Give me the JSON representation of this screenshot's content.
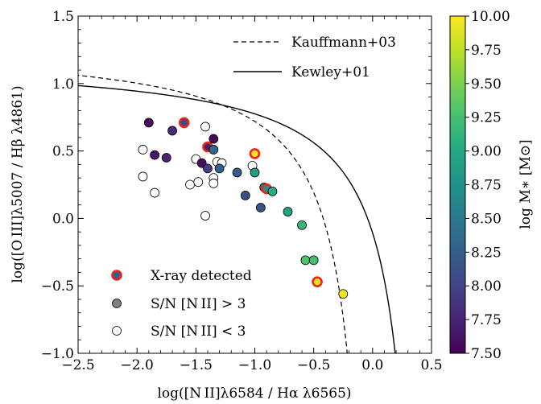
{
  "chart_data": {
    "type": "scatter",
    "xlabel": "log([N II]λ6584 / Hα λ6565)",
    "ylabel": "log([O III]λ5007 / Hβ λ4861)",
    "xlim": [
      -2.5,
      0.5
    ],
    "ylim": [
      -1.0,
      1.5
    ],
    "x_ticks": [
      "−2.5",
      "−2.0",
      "−1.5",
      "−1.0",
      "−0.5",
      "0.0",
      "0.5"
    ],
    "y_ticks": [
      "−1.0",
      "−0.5",
      "0.0",
      "0.5",
      "1.0",
      "1.5"
    ],
    "grid": false,
    "lines": [
      {
        "name": "Kauffmann+03",
        "style": "dashed"
      },
      {
        "name": "Kewley+01",
        "style": "solid"
      }
    ],
    "legend_lines_position": "top-right",
    "legend_points_position": "bottom-left",
    "legend_points": [
      "X-ray detected",
      "S/N [N II] > 3",
      "S/N [N II] < 3"
    ],
    "colorbar": {
      "label": "log M∗ [M⊙]",
      "min": 7.5,
      "max": 10.0,
      "ticks": [
        "7.50",
        "7.75",
        "8.00",
        "8.25",
        "8.50",
        "8.75",
        "9.00",
        "9.25",
        "9.50",
        "9.75",
        "10.00"
      ],
      "colormap": "viridis"
    },
    "points_detected": [
      {
        "x": -1.9,
        "y": 0.71,
        "m": 7.6
      },
      {
        "x": -1.85,
        "y": 0.47,
        "m": 7.65
      },
      {
        "x": -1.75,
        "y": 0.45,
        "m": 7.75
      },
      {
        "x": -1.7,
        "y": 0.65,
        "m": 7.8
      },
      {
        "x": -1.6,
        "y": 0.71,
        "m": 8.05,
        "xray": true
      },
      {
        "x": -1.45,
        "y": 0.41,
        "m": 7.6
      },
      {
        "x": -1.4,
        "y": 0.53,
        "m": 7.7,
        "xray": true
      },
      {
        "x": -1.4,
        "y": 0.37,
        "m": 7.95
      },
      {
        "x": -1.35,
        "y": 0.59,
        "m": 7.55
      },
      {
        "x": -1.35,
        "y": 0.51,
        "m": 8.35
      },
      {
        "x": -1.3,
        "y": 0.37,
        "m": 8.25
      },
      {
        "x": -1.15,
        "y": 0.34,
        "m": 8.2
      },
      {
        "x": -1.08,
        "y": 0.17,
        "m": 8.1
      },
      {
        "x": -1.0,
        "y": 0.48,
        "m": 9.95,
        "xray": true
      },
      {
        "x": -1.0,
        "y": 0.34,
        "m": 8.9
      },
      {
        "x": -0.95,
        "y": 0.08,
        "m": 8.15
      },
      {
        "x": -0.92,
        "y": 0.23,
        "m": 8.4
      },
      {
        "x": -0.9,
        "y": 0.22,
        "m": 8.7,
        "xray": true
      },
      {
        "x": -0.85,
        "y": 0.2,
        "m": 9.05
      },
      {
        "x": -0.72,
        "y": 0.05,
        "m": 8.95
      },
      {
        "x": -0.6,
        "y": -0.05,
        "m": 9.15
      },
      {
        "x": -0.57,
        "y": -0.31,
        "m": 9.3
      },
      {
        "x": -0.5,
        "y": -0.31,
        "m": 9.25
      },
      {
        "x": -0.47,
        "y": -0.47,
        "m": 9.9,
        "xray": true
      },
      {
        "x": -0.25,
        "y": -0.56,
        "m": 9.95
      }
    ],
    "points_undetected": [
      {
        "x": -1.95,
        "y": 0.51
      },
      {
        "x": -1.95,
        "y": 0.31
      },
      {
        "x": -1.85,
        "y": 0.19
      },
      {
        "x": -1.55,
        "y": 0.25
      },
      {
        "x": -1.5,
        "y": 0.44
      },
      {
        "x": -1.48,
        "y": 0.27
      },
      {
        "x": -1.42,
        "y": 0.68
      },
      {
        "x": -1.42,
        "y": 0.02
      },
      {
        "x": -1.35,
        "y": 0.3
      },
      {
        "x": -1.35,
        "y": 0.26
      },
      {
        "x": -1.32,
        "y": 0.42
      },
      {
        "x": -1.28,
        "y": 0.41
      },
      {
        "x": -1.02,
        "y": 0.39
      }
    ]
  }
}
